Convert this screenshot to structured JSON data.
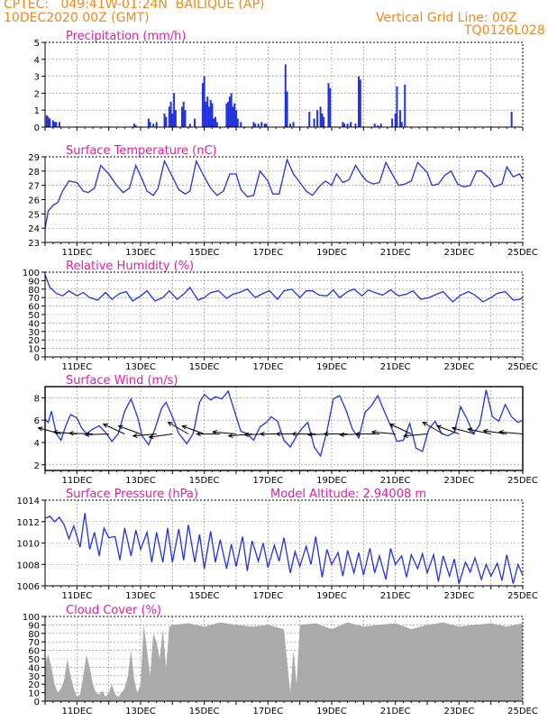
{
  "header": {
    "line1": "CPTEC:   049:41W-01:24N  BAILIQUE (AP)",
    "line2": "10DEC2020 00Z (GMT)",
    "grid_note": "Vertical Grid Line: 00Z",
    "code": "TQ0126L028",
    "text_color": "#f08a1a"
  },
  "colors": {
    "series": "#2233dd",
    "cloud": "#aaaaaa",
    "title": "#e020a0",
    "arrows": "#000000"
  },
  "x_axis": {
    "start_day": 10,
    "end_day": 25,
    "tick_labels": [
      "11DEC",
      "13DEC",
      "15DEC",
      "17DEC",
      "19DEC",
      "21DEC",
      "23DEC",
      "25DEC"
    ],
    "tick_days": [
      11,
      13,
      15,
      17,
      19,
      21,
      23,
      25
    ]
  },
  "model_altitude": "Model Altitude: 2.94008 m",
  "chart_data": [
    {
      "id": "precip",
      "type": "bar",
      "title": "Precipitation (mm/h)",
      "ylim": [
        0,
        5
      ],
      "yticks": [
        0,
        1,
        2,
        3,
        4,
        5
      ],
      "x": [
        10.05,
        10.1,
        10.15,
        10.25,
        10.3,
        10.35,
        10.45,
        12.8,
        12.85,
        13.25,
        13.3,
        13.4,
        13.5,
        13.75,
        13.8,
        13.9,
        13.95,
        14.0,
        14.05,
        14.1,
        14.3,
        14.35,
        14.4,
        14.55,
        14.7,
        14.95,
        15.0,
        15.05,
        15.1,
        15.15,
        15.2,
        15.25,
        15.3,
        15.35,
        15.4,
        15.7,
        15.75,
        15.8,
        15.85,
        15.9,
        15.95,
        16.0,
        16.05,
        16.15,
        16.55,
        16.6,
        16.7,
        16.8,
        16.9,
        16.95,
        17.55,
        17.6,
        17.7,
        17.8,
        18.3,
        18.45,
        18.55,
        18.65,
        18.7,
        18.75,
        18.9,
        18.95,
        19.35,
        19.4,
        19.5,
        19.6,
        19.75,
        19.85,
        19.9,
        20.35,
        20.45,
        20.55,
        20.9,
        21.0,
        21.05,
        21.15,
        21.2,
        21.3,
        24.65
      ],
      "values": [
        0.7,
        0.6,
        0.5,
        0.4,
        0.3,
        0.3,
        0.3,
        0.2,
        0.1,
        0.5,
        0.3,
        0.2,
        0.3,
        0.8,
        0.6,
        1.2,
        1.5,
        0.8,
        2.0,
        1.0,
        1.2,
        1.5,
        1.0,
        0.2,
        0.5,
        2.6,
        3.0,
        1.5,
        1.8,
        1.2,
        1.6,
        1.4,
        0.5,
        0.6,
        0.3,
        1.4,
        1.5,
        1.8,
        2.0,
        1.2,
        1.4,
        1.0,
        0.5,
        0.3,
        0.3,
        0.2,
        0.2,
        0.3,
        0.2,
        0.2,
        3.7,
        2.1,
        0.2,
        0.3,
        0.9,
        0.5,
        1.0,
        1.2,
        0.8,
        0.6,
        2.6,
        2.3,
        0.3,
        0.2,
        0.2,
        0.3,
        0.2,
        3.0,
        2.8,
        0.2,
        0.1,
        0.2,
        0.5,
        0.8,
        2.4,
        1.0,
        0.3,
        2.5,
        0.9
      ]
    },
    {
      "id": "temp",
      "type": "line",
      "title": "Surface Temperature (nC)",
      "ylim": [
        23,
        29
      ],
      "yticks": [
        23,
        24,
        25,
        26,
        27,
        28,
        29
      ],
      "x": [
        10,
        10.1,
        10.25,
        10.4,
        10.55,
        10.75,
        11.0,
        11.2,
        11.35,
        11.55,
        11.75,
        12.0,
        12.25,
        12.45,
        12.65,
        12.85,
        13.05,
        13.2,
        13.4,
        13.55,
        13.75,
        14.0,
        14.2,
        14.4,
        14.55,
        14.75,
        14.95,
        15.2,
        15.4,
        15.6,
        15.8,
        16.0,
        16.15,
        16.35,
        16.55,
        16.75,
        17.0,
        17.15,
        17.35,
        17.6,
        17.8,
        18.0,
        18.2,
        18.4,
        18.6,
        18.8,
        19.0,
        19.15,
        19.35,
        19.55,
        19.75,
        19.95,
        20.1,
        20.3,
        20.5,
        20.7,
        20.95,
        21.1,
        21.3,
        21.5,
        21.7,
        22.0,
        22.15,
        22.35,
        22.55,
        22.75,
        22.95,
        23.15,
        23.35,
        23.55,
        23.7,
        23.95,
        24.1,
        24.35,
        24.5,
        24.7,
        24.9,
        25.0
      ],
      "values": [
        24.0,
        25.2,
        25.6,
        25.8,
        26.6,
        27.3,
        27.2,
        26.6,
        26.5,
        26.8,
        28.4,
        27.8,
        27.0,
        26.5,
        26.8,
        28.4,
        27.4,
        26.6,
        26.3,
        26.8,
        28.7,
        27.6,
        26.7,
        26.4,
        26.6,
        28.7,
        27.8,
        26.8,
        26.3,
        26.6,
        27.8,
        27.8,
        26.7,
        26.2,
        26.3,
        28.0,
        27.3,
        26.4,
        26.4,
        28.8,
        27.8,
        27.2,
        26.6,
        26.3,
        26.9,
        27.3,
        27.0,
        27.8,
        27.2,
        27.4,
        28.4,
        27.7,
        27.3,
        27.1,
        27.2,
        28.6,
        27.6,
        27.0,
        27.1,
        27.3,
        28.6,
        27.9,
        27.0,
        27.1,
        27.7,
        28.0,
        27.1,
        26.9,
        27.0,
        28.0,
        28.0,
        27.5,
        26.9,
        27.1,
        28.3,
        27.6,
        27.8,
        27.4
      ]
    },
    {
      "id": "rh",
      "type": "line",
      "title": "Relative Humidity (%)",
      "ylim": [
        0,
        100
      ],
      "yticks": [
        0,
        10,
        20,
        30,
        40,
        50,
        60,
        70,
        80,
        90,
        100
      ],
      "x": [
        10,
        10.15,
        10.35,
        10.55,
        10.75,
        11.0,
        11.2,
        11.4,
        11.65,
        11.9,
        12.1,
        12.35,
        12.55,
        12.75,
        13.0,
        13.2,
        13.45,
        13.7,
        13.9,
        14.15,
        14.35,
        14.55,
        14.8,
        15.0,
        15.2,
        15.45,
        15.7,
        15.9,
        16.1,
        16.35,
        16.6,
        16.85,
        17.05,
        17.3,
        17.5,
        17.75,
        18.0,
        18.2,
        18.4,
        18.6,
        18.85,
        19.05,
        19.25,
        19.5,
        19.7,
        19.95,
        20.15,
        20.35,
        20.6,
        20.85,
        21.1,
        21.35,
        21.55,
        21.8,
        22.05,
        22.3,
        22.5,
        22.8,
        23.05,
        23.3,
        23.5,
        23.75,
        24.0,
        24.2,
        24.45,
        24.7,
        24.9,
        25.0
      ],
      "values": [
        97,
        82,
        75,
        72,
        78,
        72,
        76,
        70,
        67,
        76,
        68,
        75,
        77,
        66,
        72,
        78,
        66,
        70,
        78,
        68,
        74,
        82,
        67,
        70,
        76,
        78,
        69,
        74,
        76,
        80,
        70,
        75,
        78,
        68,
        78,
        80,
        70,
        78,
        78,
        73,
        72,
        79,
        70,
        77,
        80,
        72,
        79,
        76,
        73,
        79,
        72,
        74,
        78,
        68,
        70,
        74,
        77,
        65,
        73,
        77,
        73,
        65,
        70,
        75,
        77,
        67,
        68,
        70
      ]
    },
    {
      "id": "wind",
      "type": "line",
      "title": "Surface Wind (m/s)",
      "ylim": [
        1.5,
        9
      ],
      "yticks": [
        2,
        4,
        6,
        8
      ],
      "x": [
        10,
        10.1,
        10.2,
        10.35,
        10.5,
        10.65,
        10.8,
        11.0,
        11.15,
        11.3,
        11.5,
        11.7,
        11.9,
        12.1,
        12.3,
        12.5,
        12.7,
        12.9,
        13.05,
        13.25,
        13.45,
        13.65,
        13.8,
        14.0,
        14.2,
        14.45,
        14.65,
        14.85,
        15.0,
        15.2,
        15.35,
        15.55,
        15.75,
        15.95,
        16.15,
        16.35,
        16.55,
        16.75,
        16.95,
        17.1,
        17.3,
        17.5,
        17.7,
        17.9,
        18.05,
        18.25,
        18.45,
        18.65,
        18.85,
        19.05,
        19.25,
        19.45,
        19.65,
        19.85,
        20.05,
        20.25,
        20.45,
        20.65,
        20.85,
        21.05,
        21.25,
        21.45,
        21.65,
        21.85,
        22.05,
        22.25,
        22.45,
        22.65,
        22.85,
        23.05,
        23.25,
        23.45,
        23.65,
        23.85,
        24.05,
        24.25,
        24.45,
        24.65,
        24.85,
        25.0
      ],
      "values": [
        6.1,
        5.8,
        6.8,
        4.8,
        4.2,
        5.5,
        6.5,
        6.2,
        5.3,
        4.8,
        5.2,
        5.5,
        4.9,
        4.1,
        4.8,
        6.8,
        7.9,
        6.3,
        4.6,
        3.8,
        5.2,
        7.0,
        7.6,
        6.3,
        4.8,
        3.9,
        4.8,
        7.6,
        8.3,
        7.8,
        8.1,
        7.9,
        8.6,
        6.8,
        5.0,
        4.8,
        4.2,
        5.4,
        5.8,
        6.3,
        5.9,
        4.2,
        3.6,
        4.6,
        5.2,
        5.8,
        3.6,
        2.8,
        5.0,
        7.9,
        8.2,
        6.9,
        5.2,
        4.4,
        6.7,
        7.3,
        8.2,
        6.8,
        5.5,
        4.1,
        4.2,
        5.7,
        3.5,
        3.2,
        5.2,
        5.9,
        4.8,
        4.6,
        4.9,
        7.2,
        6.1,
        4.8,
        5.6,
        8.7,
        6.3,
        5.9,
        7.4,
        6.3,
        5.8,
        6.0
      ],
      "arrow_days": [
        10.5,
        11.0,
        11.5,
        12.0,
        12.5,
        13.0,
        13.5,
        14.0,
        14.5,
        15.0,
        15.5,
        16.0,
        16.5,
        17.0,
        17.5,
        18.0,
        18.5,
        19.0,
        19.5,
        20.0,
        20.5,
        21.0,
        21.5,
        22.0,
        22.5,
        23.0,
        23.5,
        24.0,
        24.5,
        25.0
      ],
      "arrow_dirs_deg": [
        195,
        185,
        182,
        178,
        205,
        200,
        175,
        172,
        210,
        200,
        180,
        185,
        175,
        178,
        180,
        180,
        180,
        178,
        180,
        178,
        180,
        185,
        205,
        175,
        210,
        200,
        195,
        192,
        188,
        185
      ]
    },
    {
      "id": "pres",
      "type": "line",
      "title": "Surface Pressure (hPa)",
      "ylim": [
        1006,
        1014
      ],
      "yticks": [
        1006,
        1008,
        1010,
        1012,
        1014
      ],
      "x": [
        10,
        10.15,
        10.3,
        10.45,
        10.6,
        10.75,
        10.9,
        11.1,
        11.25,
        11.4,
        11.55,
        11.7,
        11.85,
        12.0,
        12.2,
        12.35,
        12.5,
        12.7,
        12.85,
        13.0,
        13.2,
        13.35,
        13.5,
        13.7,
        13.85,
        14.0,
        14.2,
        14.35,
        14.5,
        14.7,
        14.85,
        15.0,
        15.2,
        15.35,
        15.5,
        15.7,
        15.85,
        16.0,
        16.2,
        16.35,
        16.5,
        16.7,
        16.85,
        17.0,
        17.2,
        17.35,
        17.5,
        17.7,
        17.85,
        18.0,
        18.2,
        18.35,
        18.5,
        18.7,
        18.85,
        19.0,
        19.2,
        19.35,
        19.5,
        19.7,
        19.85,
        20.0,
        20.2,
        20.35,
        20.5,
        20.7,
        20.85,
        21.0,
        21.2,
        21.35,
        21.5,
        21.7,
        21.85,
        22.0,
        22.2,
        22.35,
        22.5,
        22.7,
        22.85,
        23.0,
        23.2,
        23.35,
        23.5,
        23.7,
        23.85,
        24.0,
        24.2,
        24.35,
        24.5,
        24.7,
        24.85,
        25.0
      ],
      "values": [
        1012.3,
        1012.5,
        1012.0,
        1012.4,
        1011.7,
        1010.4,
        1011.6,
        1009.6,
        1012.8,
        1009.4,
        1011.0,
        1008.8,
        1011.4,
        1010.5,
        1010.6,
        1008.4,
        1011.4,
        1008.8,
        1011.2,
        1009.4,
        1011.0,
        1008.2,
        1011.0,
        1008.2,
        1011.4,
        1008.2,
        1011.3,
        1008.4,
        1011.7,
        1008.2,
        1010.8,
        1007.6,
        1011.1,
        1008.2,
        1010.3,
        1007.6,
        1009.9,
        1007.8,
        1010.6,
        1007.4,
        1010.2,
        1008.3,
        1010.0,
        1007.7,
        1009.8,
        1008.3,
        1010.5,
        1007.2,
        1009.2,
        1007.8,
        1009.7,
        1008.0,
        1010.6,
        1006.8,
        1009.4,
        1008.0,
        1009.1,
        1006.9,
        1009.3,
        1007.2,
        1009.1,
        1007.0,
        1009.5,
        1007.2,
        1008.8,
        1006.6,
        1009.5,
        1008.0,
        1008.8,
        1006.8,
        1008.9,
        1007.6,
        1009.0,
        1007.2,
        1008.9,
        1006.4,
        1008.8,
        1006.9,
        1008.5,
        1006.2,
        1008.2,
        1007.3,
        1008.6,
        1006.6,
        1008.0,
        1006.9,
        1008.1,
        1006.5,
        1008.9,
        1006.2,
        1008.0,
        1007.0
      ]
    },
    {
      "id": "cloud",
      "type": "area",
      "title": "Cloud Cover (%)",
      "ylim": [
        0,
        100
      ],
      "yticks": [
        0,
        10,
        20,
        30,
        40,
        50,
        60,
        70,
        80,
        90,
        100
      ],
      "x": [
        10,
        10.1,
        10.2,
        10.3,
        10.4,
        10.5,
        10.6,
        10.7,
        10.8,
        10.9,
        11.0,
        11.1,
        11.2,
        11.3,
        11.4,
        11.5,
        11.6,
        11.7,
        11.8,
        11.9,
        12.0,
        12.1,
        12.2,
        12.3,
        12.4,
        12.5,
        12.6,
        12.7,
        12.8,
        12.9,
        13.0,
        13.1,
        13.2,
        13.3,
        13.4,
        13.5,
        13.6,
        13.7,
        13.8,
        13.9,
        14.0,
        14.5,
        15.0,
        15.5,
        16.0,
        16.5,
        17.0,
        17.5,
        17.7,
        17.8,
        17.9,
        18.0,
        18.5,
        19.0,
        19.5,
        20.0,
        20.5,
        21.0,
        21.5,
        22.0,
        22.5,
        23.0,
        23.5,
        24.0,
        24.5,
        25.0
      ],
      "values": [
        45,
        55,
        40,
        20,
        10,
        15,
        25,
        50,
        30,
        15,
        5,
        8,
        30,
        55,
        40,
        20,
        10,
        8,
        12,
        5,
        10,
        20,
        8,
        5,
        10,
        15,
        30,
        60,
        25,
        10,
        20,
        90,
        60,
        30,
        80,
        70,
        50,
        85,
        40,
        88,
        90,
        92,
        88,
        93,
        90,
        88,
        90,
        85,
        10,
        60,
        20,
        90,
        92,
        85,
        93,
        88,
        90,
        92,
        85,
        90,
        93,
        88,
        90,
        92,
        88,
        92
      ]
    }
  ]
}
